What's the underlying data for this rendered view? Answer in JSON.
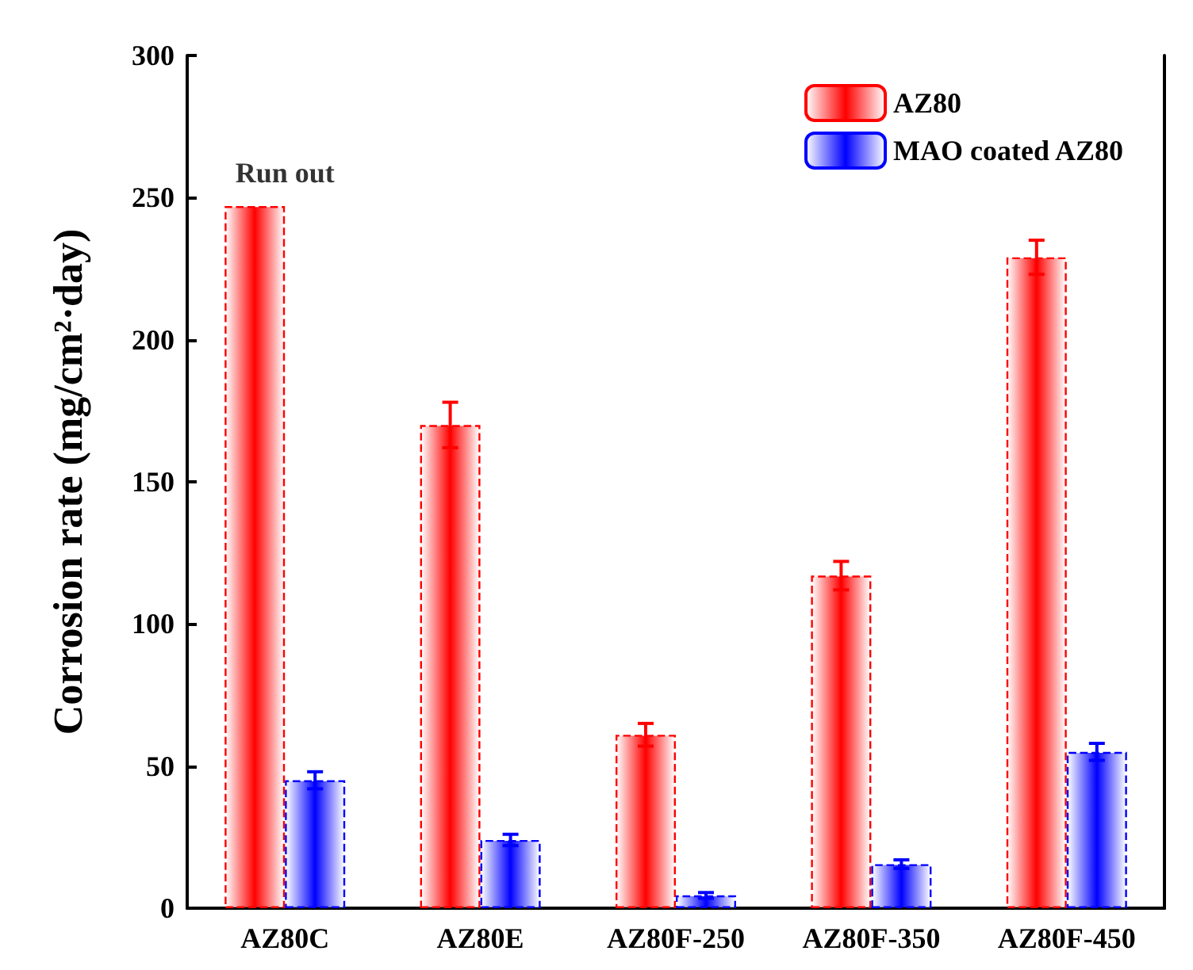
{
  "chart_data": {
    "type": "bar",
    "ylabel": "Corrosion rate (mg/cm²·day)",
    "categories": [
      "AZ80C",
      "AZ80E",
      "AZ80F-250",
      "AZ80F-350",
      "AZ80F-450"
    ],
    "series": [
      {
        "name": "AZ80",
        "color": "#ff0000",
        "values": [
          247,
          170,
          61,
          117,
          229
        ],
        "errors": [
          null,
          8,
          4,
          5,
          6
        ]
      },
      {
        "name": "MAO coated AZ80",
        "color": "#0000ff",
        "values": [
          45,
          24,
          4.5,
          15.5,
          55
        ],
        "errors": [
          3,
          2,
          1,
          1.5,
          3
        ]
      }
    ],
    "annotations": [
      {
        "text": "Run out",
        "x": "AZ80C",
        "y": 247
      }
    ],
    "ylim": [
      0,
      300
    ],
    "yticks": [
      0,
      50,
      100,
      150,
      200,
      250,
      300
    ],
    "grid": false,
    "legend": "top right"
  }
}
